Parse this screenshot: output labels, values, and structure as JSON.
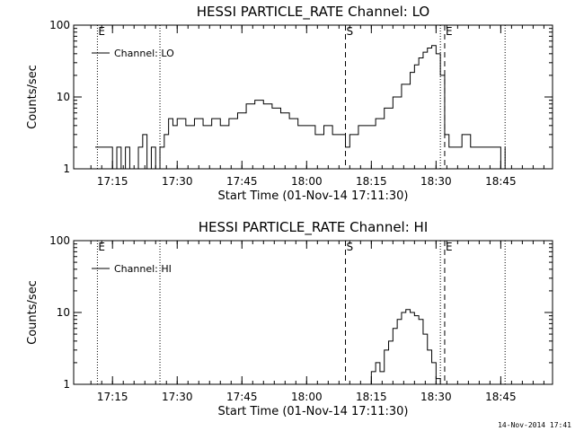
{
  "footer_timestamp": "14-Nov-2014 17:41",
  "chart_data": [
    {
      "type": "line",
      "title": "HESSI PARTICLE_RATE Channel: LO",
      "xlabel": "Start Time (01-Nov-14 17:11:30)",
      "ylabel": "Counts/sec",
      "yscale": "log",
      "ylim": [
        1,
        100
      ],
      "xlim_minutes": [
        17.1,
        18.95
      ],
      "x_ticks": [
        "17:15",
        "17:30",
        "17:45",
        "18:00",
        "18:15",
        "18:30",
        "18:45"
      ],
      "y_ticks": [
        "1",
        "10",
        "100"
      ],
      "legend": {
        "label": "Channel: LO",
        "placement": "top-left"
      },
      "markers": [
        {
          "label": "E",
          "time": "17:11:30",
          "style": "dotted"
        },
        {
          "label": "",
          "time": "17:26",
          "style": "dotted"
        },
        {
          "label": "S",
          "time": "18:09",
          "style": "dashed"
        },
        {
          "label": "",
          "time": "18:31",
          "style": "dotted"
        },
        {
          "label": "E",
          "time": "18:32",
          "style": "dashed"
        },
        {
          "label": "",
          "time": "18:46",
          "style": "dotted"
        }
      ],
      "series": [
        {
          "name": "Channel: LO",
          "x": [
            "17:11",
            "17:14",
            "17:15",
            "17:16",
            "17:17",
            "17:18",
            "17:19",
            "17:20",
            "17:21",
            "17:22",
            "17:23",
            "17:24",
            "17:25",
            "17:26",
            "17:27",
            "17:28",
            "17:29",
            "17:30",
            "17:32",
            "17:34",
            "17:36",
            "17:38",
            "17:40",
            "17:42",
            "17:44",
            "17:46",
            "17:48",
            "17:50",
            "17:52",
            "17:54",
            "17:56",
            "17:58",
            "18:00",
            "18:02",
            "18:04",
            "18:06",
            "18:08",
            "18:09",
            "18:10",
            "18:12",
            "18:14",
            "18:16",
            "18:18",
            "18:20",
            "18:22",
            "18:24",
            "18:25",
            "18:26",
            "18:27",
            "18:28",
            "18:29",
            "18:30",
            "18:31",
            "18:32",
            "18:33",
            "18:34",
            "18:35",
            "18:36",
            "18:38",
            "18:40",
            "18:42",
            "18:44",
            "18:45",
            "18:46"
          ],
          "y": [
            2,
            2,
            1,
            2,
            1,
            2,
            1,
            1,
            2,
            3,
            1,
            2,
            1,
            2,
            3,
            5,
            4,
            5,
            4,
            5,
            4,
            5,
            4,
            5,
            6,
            8,
            9,
            8,
            7,
            6,
            5,
            4,
            4,
            3,
            4,
            3,
            3,
            2,
            3,
            4,
            4,
            5,
            7,
            10,
            15,
            22,
            28,
            35,
            42,
            48,
            52,
            40,
            20,
            3,
            2,
            2,
            2,
            3,
            2,
            2,
            2,
            2,
            1,
            2
          ]
        }
      ]
    },
    {
      "type": "line",
      "title": "HESSI PARTICLE_RATE Channel: HI",
      "xlabel": "Start Time (01-Nov-14 17:11:30)",
      "ylabel": "Counts/sec",
      "yscale": "log",
      "ylim": [
        1,
        100
      ],
      "xlim_minutes": [
        17.1,
        18.95
      ],
      "x_ticks": [
        "17:15",
        "17:30",
        "17:45",
        "18:00",
        "18:15",
        "18:30",
        "18:45"
      ],
      "y_ticks": [
        "1",
        "10",
        "100"
      ],
      "legend": {
        "label": "Channel: HI",
        "placement": "top-left"
      },
      "markers": [
        {
          "label": "E",
          "time": "17:11:30",
          "style": "dotted"
        },
        {
          "label": "",
          "time": "17:26",
          "style": "dotted"
        },
        {
          "label": "S",
          "time": "18:09",
          "style": "dashed"
        },
        {
          "label": "",
          "time": "18:31",
          "style": "dotted"
        },
        {
          "label": "E",
          "time": "18:32",
          "style": "dashed"
        },
        {
          "label": "",
          "time": "18:46",
          "style": "dotted"
        }
      ],
      "series": [
        {
          "name": "Channel: HI",
          "x": [
            "18:14",
            "18:15",
            "18:16",
            "18:17",
            "18:18",
            "18:19",
            "18:20",
            "18:21",
            "18:22",
            "18:23",
            "18:24",
            "18:25",
            "18:26",
            "18:27",
            "18:28",
            "18:29",
            "18:30",
            "18:31"
          ],
          "y": [
            1,
            1.5,
            2,
            1.5,
            3,
            4,
            6,
            8,
            10,
            11,
            10,
            9,
            8,
            5,
            3,
            2,
            1.2,
            1
          ]
        }
      ]
    }
  ]
}
